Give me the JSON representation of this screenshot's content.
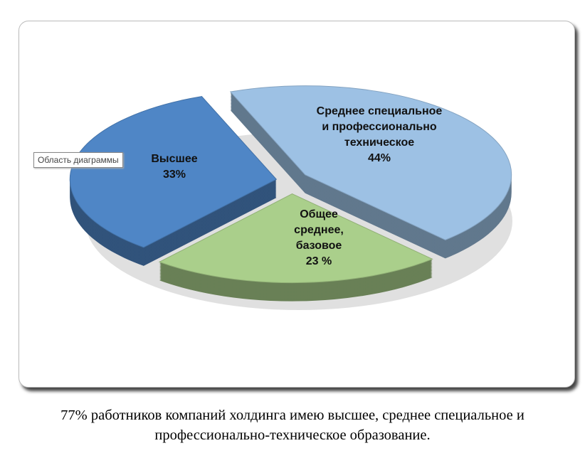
{
  "chart_data": {
    "type": "pie",
    "categories": [
      "Высшее",
      "Среднее специальное и профессионально техническое",
      "Общее среднее, базовое"
    ],
    "values": [
      33,
      44,
      23
    ],
    "value_labels": [
      "33%",
      "44%",
      "23 %"
    ],
    "colors": [
      "#4f86c6",
      "#9dc1e4",
      "#aacf8b"
    ]
  },
  "tooltip": "Область диаграммы",
  "caption": "77% работников компаний холдинга имею высшее, среднее специальное и профессионально-техническое образование."
}
